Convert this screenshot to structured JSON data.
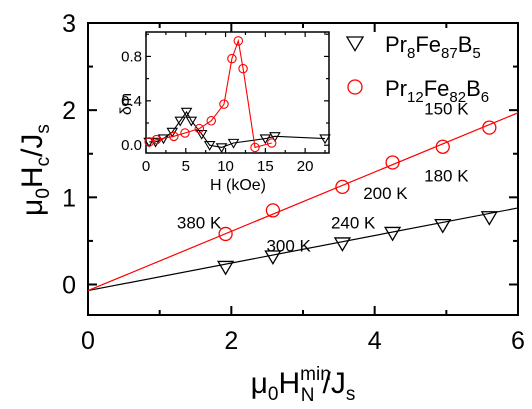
{
  "chart_data": [
    {
      "type": "scatter",
      "ylabel": {
        "base": "μ",
        "sub1": "0",
        "mid": "H",
        "sub2": "c",
        "tail": "/J",
        "sub3": "s"
      },
      "xlabel": {
        "base": "μ",
        "sub1": "0",
        "mid": "H",
        "sup": "min",
        "sub2": "N",
        "tail": "/J",
        "sub3": "s"
      },
      "xlim": [
        0,
        6
      ],
      "ylim": [
        -0.35,
        3
      ],
      "x_ticks": [
        "0",
        "2",
        "4",
        "6"
      ],
      "y_ticks": [
        "0",
        "1",
        "2",
        "3"
      ],
      "x_tick_values": [
        0,
        2,
        4,
        6
      ],
      "y_tick_values": [
        0,
        1,
        2,
        3
      ],
      "legend": {
        "placement": "top-right",
        "entries": [
          {
            "series": 0,
            "parts": [
              [
                "Pr",
                ""
              ],
              [
                "8",
                "sub"
              ],
              [
                "Fe",
                ""
              ],
              [
                "87",
                "sub"
              ],
              [
                "B",
                ""
              ],
              [
                "5",
                "sub"
              ]
            ]
          },
          {
            "series": 1,
            "parts": [
              [
                "Pr",
                ""
              ],
              [
                "12",
                "sub"
              ],
              [
                "Fe",
                ""
              ],
              [
                "82",
                "sub"
              ],
              [
                "B",
                ""
              ],
              [
                "6",
                "sub"
              ]
            ]
          }
        ]
      },
      "series": [
        {
          "marker": "triangle-down",
          "color": "#000000",
          "x": [
            1.92,
            2.58,
            3.55,
            4.25,
            4.95,
            5.6
          ],
          "y": [
            0.2,
            0.32,
            0.47,
            0.59,
            0.68,
            0.77
          ],
          "fit": {
            "slope": 0.158,
            "intercept": -0.07
          }
        },
        {
          "marker": "circle",
          "color": "#ff0000",
          "x": [
            1.92,
            2.58,
            3.55,
            4.25,
            4.95,
            5.6
          ],
          "y": [
            0.58,
            0.85,
            1.12,
            1.4,
            1.58,
            1.8
          ],
          "fit": {
            "slope": 0.34,
            "intercept": -0.07
          }
        }
      ],
      "annotations": [
        {
          "text": "150 K",
          "x": 5.0,
          "y": 1.95
        },
        {
          "text": "180 K",
          "x": 5.0,
          "y": 1.18
        },
        {
          "text": "200 K",
          "x": 4.15,
          "y": 0.98
        },
        {
          "text": "240 K",
          "x": 3.7,
          "y": 0.64
        },
        {
          "text": "380 K",
          "x": 1.55,
          "y": 0.64
        },
        {
          "text": "300 K",
          "x": 2.8,
          "y": 0.38
        }
      ]
    },
    {
      "type": "line",
      "ylabel": "δm",
      "xlabel": "H (kOe)",
      "xlim": [
        0,
        23
      ],
      "ylim": [
        -0.07,
        1.02
      ],
      "x_ticks": [
        "0",
        "5",
        "10",
        "15",
        "20"
      ],
      "y_ticks": [
        "0.0",
        "0.4",
        "0.8"
      ],
      "x_tick_values": [
        0,
        5,
        10,
        15,
        20
      ],
      "y_tick_values": [
        0.0,
        0.4,
        0.8
      ],
      "series": [
        {
          "marker": "triangle-down",
          "color": "#000000",
          "x": [
            0.4,
            1.2,
            2.2,
            3.3,
            4.3,
            5.1,
            5.7,
            7.0,
            8.0,
            9.5,
            11.0,
            15.0,
            16.2,
            22.5
          ],
          "y": [
            0.03,
            0.03,
            0.06,
            0.12,
            0.22,
            0.3,
            0.22,
            0.1,
            0.0,
            -0.02,
            0.02,
            0.06,
            0.08,
            0.06
          ]
        },
        {
          "marker": "circle",
          "color": "#ff0000",
          "x": [
            0.4,
            1.3,
            3.5,
            4.9,
            6.7,
            8.2,
            9.8,
            10.8,
            11.6,
            12.2,
            13.7,
            15.8
          ],
          "y": [
            0.03,
            0.05,
            0.08,
            0.11,
            0.15,
            0.22,
            0.37,
            0.78,
            0.94,
            0.69,
            -0.02,
            0.02
          ]
        }
      ]
    }
  ]
}
